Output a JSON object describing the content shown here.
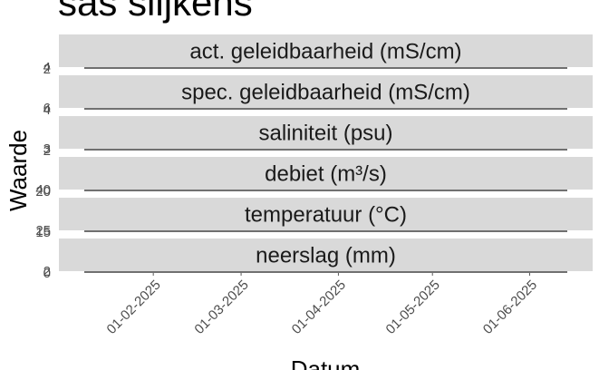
{
  "chart_data": {
    "type": "line",
    "title": "sas slijkens",
    "x_label": "Datum",
    "y_label": "Waarde",
    "xlim": [
      "10-01-2025",
      "13-06-2025"
    ],
    "xticks": [
      "01-02-2025",
      "01-03-2025",
      "01-04-2025",
      "01-05-2025",
      "01-06-2025"
    ],
    "color": "#1a1a1a",
    "facets": [
      {
        "label": "act. geleidbaarheid (mS/cm)",
        "ylim": [
          2,
          4
        ],
        "yticks": [
          2,
          4
        ],
        "series": [
          {
            "x": [
              "10-01-2025",
              "13-06-2025"
            ],
            "values": [
              3,
              3
            ]
          }
        ]
      },
      {
        "label": "spec. geleidbaarheid (mS/cm)",
        "ylim": [
          4,
          6
        ],
        "yticks": [
          4,
          6
        ],
        "series": [
          {
            "x": [
              "10-01-2025",
              "13-06-2025"
            ],
            "values": [
              5,
              5
            ]
          }
        ]
      },
      {
        "label": "saliniteit (psu)",
        "ylim": [
          2,
          3
        ],
        "yticks": [
          2,
          3
        ],
        "series": [
          {
            "x": [
              "10-01-2025",
              "13-06-2025"
            ],
            "values": [
              2.5,
              2.5
            ]
          }
        ]
      },
      {
        "label": "debiet (m³/s)",
        "ylim": [
          20,
          40
        ],
        "yticks": [
          20,
          40
        ],
        "series": [
          {
            "x": [
              "10-01-2025",
              "13-06-2025"
            ],
            "values": [
              30,
              30
            ]
          }
        ]
      },
      {
        "label": "temperatuur (°C)",
        "ylim": [
          15,
          25
        ],
        "yticks": [
          15,
          25
        ],
        "series": [
          {
            "x": [
              "10-01-2025",
              "13-06-2025"
            ],
            "values": [
              20,
              20
            ]
          }
        ]
      },
      {
        "label": "neerslag (mm)",
        "ylim": [
          0,
          2
        ],
        "yticks": [
          0,
          2
        ],
        "series": [
          {
            "x": [
              "10-01-2025",
              "13-06-2025"
            ],
            "values": [
              1,
              1
            ]
          }
        ]
      }
    ]
  }
}
